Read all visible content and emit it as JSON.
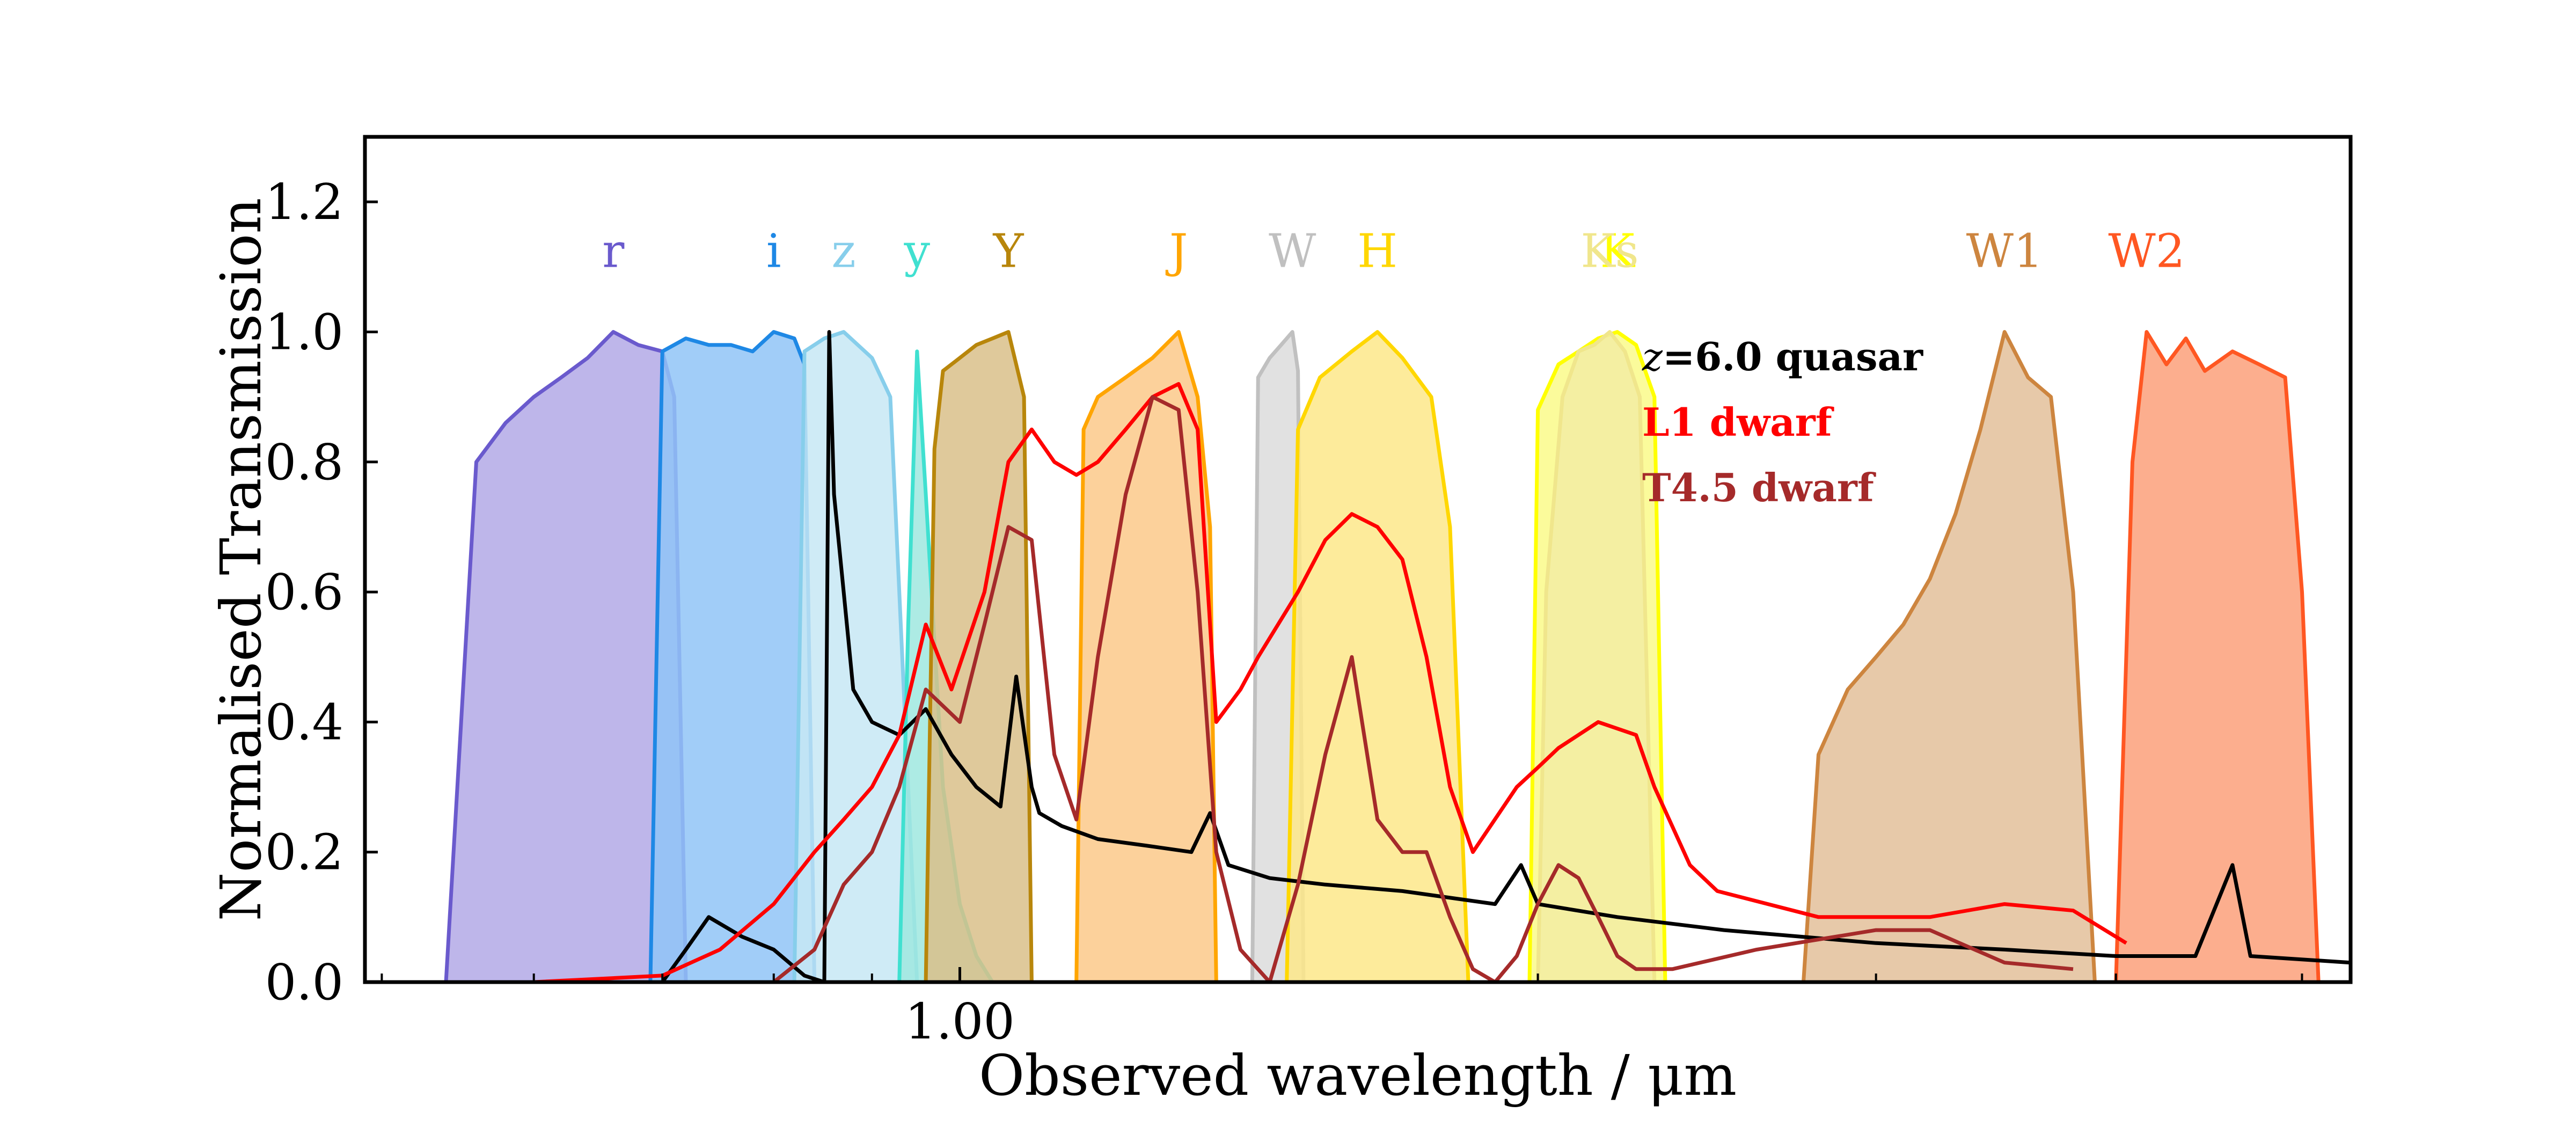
{
  "chart_data": {
    "type": "area",
    "xlabel": "Observed wavelength / μm",
    "ylabel": "Normalised Transmission",
    "x_scale": "log",
    "xlim": [
      0.49,
      5.3
    ],
    "ylim": [
      0.0,
      1.3
    ],
    "x_tick_labels": [
      "1.00"
    ],
    "y_tick_labels": [
      "0.0",
      "0.2",
      "0.4",
      "0.6",
      "0.8",
      "1.0",
      "1.2"
    ],
    "grid": false,
    "legend_position": "upper-middle",
    "filters": [
      {
        "label": "r",
        "color": "#6a5acd",
        "fill": "#b3a9e6",
        "x": [
          0.54,
          0.56,
          0.58,
          0.6,
          0.62,
          0.64,
          0.66,
          0.68,
          0.7,
          0.71,
          0.72
        ],
        "y": [
          0.0,
          0.8,
          0.86,
          0.9,
          0.93,
          0.96,
          1.0,
          0.98,
          0.97,
          0.9,
          0.0
        ]
      },
      {
        "label": "i",
        "color": "#1e88e5",
        "fill": "#90c4f7",
        "x": [
          0.69,
          0.7,
          0.72,
          0.74,
          0.76,
          0.78,
          0.8,
          0.82,
          0.83,
          0.84
        ],
        "y": [
          0.0,
          0.97,
          0.99,
          0.98,
          0.98,
          0.97,
          1.0,
          0.99,
          0.95,
          0.0
        ]
      },
      {
        "label": "z",
        "color": "#87ceeb",
        "fill": "#c7e7f5",
        "x": [
          0.82,
          0.83,
          0.85,
          0.87,
          0.9,
          0.92,
          0.93,
          0.95
        ],
        "y": [
          0.0,
          0.97,
          0.99,
          1.0,
          0.96,
          0.9,
          0.6,
          0.0
        ]
      },
      {
        "label": "y",
        "color": "#40e0d0",
        "fill": "#9fe8df",
        "x": [
          0.93,
          0.94,
          0.95,
          0.96,
          0.98,
          1.0,
          1.02,
          1.04
        ],
        "y": [
          0.0,
          0.55,
          0.97,
          0.75,
          0.3,
          0.12,
          0.04,
          0.0
        ]
      },
      {
        "label": "Y",
        "color": "#b8860b",
        "fill": "#d9c08a",
        "x": [
          0.96,
          0.97,
          0.98,
          1.0,
          1.02,
          1.04,
          1.06,
          1.08,
          1.09
        ],
        "y": [
          0.0,
          0.82,
          0.94,
          0.96,
          0.98,
          0.99,
          1.0,
          0.9,
          0.0
        ]
      },
      {
        "label": "J",
        "color": "#ffa500",
        "fill": "#fcc98a",
        "x": [
          1.15,
          1.16,
          1.18,
          1.22,
          1.26,
          1.3,
          1.33,
          1.35,
          1.36
        ],
        "y": [
          0.0,
          0.85,
          0.9,
          0.93,
          0.96,
          1.0,
          0.9,
          0.7,
          0.0
        ]
      },
      {
        "label": "W",
        "color": "#c0c0c0",
        "fill": "#dcdcdc",
        "x": [
          1.42,
          1.43,
          1.45,
          1.47,
          1.49,
          1.5,
          1.51
        ],
        "y": [
          0.0,
          0.93,
          0.96,
          0.98,
          1.0,
          0.94,
          0.0
        ]
      },
      {
        "label": "H",
        "color": "#ffd700",
        "fill": "#fde88a",
        "x": [
          1.48,
          1.5,
          1.54,
          1.6,
          1.65,
          1.7,
          1.76,
          1.8,
          1.84
        ],
        "y": [
          0.0,
          0.85,
          0.93,
          0.97,
          1.0,
          0.96,
          0.9,
          0.7,
          0.0
        ]
      },
      {
        "label": "K",
        "color": "#ffff00",
        "fill": "#fafa8a",
        "x": [
          1.98,
          2.0,
          2.05,
          2.1,
          2.15,
          2.2,
          2.25,
          2.3,
          2.33
        ],
        "y": [
          0.0,
          0.88,
          0.95,
          0.97,
          0.99,
          1.0,
          0.98,
          0.9,
          0.0
        ]
      },
      {
        "label": "Ks",
        "color": "#f0e68c",
        "fill": "#f2eca3",
        "x": [
          2.0,
          2.02,
          2.06,
          2.1,
          2.14,
          2.18,
          2.22,
          2.26,
          2.3
        ],
        "y": [
          0.0,
          0.6,
          0.9,
          0.97,
          0.98,
          1.0,
          0.97,
          0.9,
          0.0
        ]
      },
      {
        "label": "W1",
        "color": "#cd853f",
        "fill": "#e3c09a",
        "x": [
          2.75,
          2.8,
          2.9,
          3.0,
          3.1,
          3.2,
          3.3,
          3.4,
          3.5,
          3.6,
          3.7,
          3.8,
          3.9
        ],
        "y": [
          0.0,
          0.35,
          0.45,
          0.5,
          0.55,
          0.62,
          0.72,
          0.85,
          1.0,
          0.93,
          0.9,
          0.6,
          0.0
        ]
      },
      {
        "label": "W2",
        "color": "#ff5722",
        "fill": "#fba07a",
        "x": [
          4.0,
          4.08,
          4.15,
          4.25,
          4.35,
          4.45,
          4.6,
          4.75,
          4.9,
          5.0,
          5.1
        ],
        "y": [
          0.0,
          0.8,
          1.0,
          0.95,
          0.99,
          0.94,
          0.97,
          0.95,
          0.93,
          0.6,
          0.0
        ]
      }
    ],
    "series": [
      {
        "name": "z=6.0 quasar",
        "color": "#000000",
        "x": [
          0.7,
          0.72,
          0.74,
          0.77,
          0.8,
          0.83,
          0.85,
          0.855,
          0.86,
          0.87,
          0.88,
          0.9,
          0.93,
          0.96,
          0.99,
          1.02,
          1.05,
          1.07,
          1.09,
          1.1,
          1.13,
          1.18,
          1.25,
          1.32,
          1.35,
          1.38,
          1.45,
          1.55,
          1.7,
          1.9,
          1.96,
          2.0,
          2.2,
          2.5,
          3.0,
          3.5,
          4.0,
          4.4,
          4.6,
          4.7,
          5.3
        ],
        "y": [
          0.0,
          0.05,
          0.1,
          0.07,
          0.05,
          0.01,
          0.0,
          1.0,
          0.75,
          0.6,
          0.45,
          0.4,
          0.38,
          0.42,
          0.35,
          0.3,
          0.27,
          0.47,
          0.3,
          0.26,
          0.24,
          0.22,
          0.21,
          0.2,
          0.26,
          0.18,
          0.16,
          0.15,
          0.14,
          0.12,
          0.18,
          0.12,
          0.1,
          0.08,
          0.06,
          0.05,
          0.04,
          0.04,
          0.18,
          0.04,
          0.03
        ]
      },
      {
        "name": "L1 dwarf",
        "color": "#ff0000",
        "x": [
          0.6,
          0.7,
          0.75,
          0.8,
          0.84,
          0.87,
          0.9,
          0.93,
          0.96,
          0.99,
          1.03,
          1.06,
          1.09,
          1.12,
          1.15,
          1.18,
          1.22,
          1.26,
          1.3,
          1.33,
          1.36,
          1.4,
          1.43,
          1.5,
          1.55,
          1.6,
          1.65,
          1.7,
          1.75,
          1.8,
          1.85,
          1.95,
          2.0,
          2.05,
          2.15,
          2.25,
          2.3,
          2.4,
          2.48,
          2.8,
          3.2,
          3.5,
          3.8,
          4.05
        ],
        "y": [
          0.0,
          0.01,
          0.05,
          0.12,
          0.2,
          0.25,
          0.3,
          0.38,
          0.55,
          0.45,
          0.6,
          0.8,
          0.85,
          0.8,
          0.78,
          0.8,
          0.85,
          0.9,
          0.92,
          0.85,
          0.4,
          0.45,
          0.5,
          0.6,
          0.68,
          0.72,
          0.7,
          0.65,
          0.5,
          0.3,
          0.2,
          0.3,
          0.33,
          0.36,
          0.4,
          0.38,
          0.3,
          0.18,
          0.14,
          0.1,
          0.1,
          0.12,
          0.11,
          0.06
        ]
      },
      {
        "name": "T4.5 dwarf",
        "color": "#a52a2a",
        "x": [
          0.8,
          0.84,
          0.87,
          0.9,
          0.93,
          0.96,
          1.0,
          1.03,
          1.06,
          1.09,
          1.12,
          1.15,
          1.18,
          1.22,
          1.26,
          1.3,
          1.33,
          1.36,
          1.4,
          1.45,
          1.5,
          1.55,
          1.6,
          1.65,
          1.7,
          1.75,
          1.8,
          1.85,
          1.9,
          1.95,
          2.0,
          2.05,
          2.1,
          2.15,
          2.2,
          2.25,
          2.35,
          2.6,
          3.0,
          3.2,
          3.5,
          3.8
        ],
        "y": [
          0.0,
          0.05,
          0.15,
          0.2,
          0.3,
          0.45,
          0.4,
          0.55,
          0.7,
          0.68,
          0.35,
          0.25,
          0.5,
          0.75,
          0.9,
          0.88,
          0.6,
          0.2,
          0.05,
          0.0,
          0.15,
          0.35,
          0.5,
          0.25,
          0.2,
          0.2,
          0.1,
          0.02,
          0.0,
          0.04,
          0.12,
          0.18,
          0.16,
          0.1,
          0.04,
          0.02,
          0.02,
          0.05,
          0.08,
          0.08,
          0.03,
          0.02
        ]
      }
    ],
    "legend": [
      {
        "prefix": "z",
        "text": "=6.0 quasar",
        "color": "#000000"
      },
      {
        "prefix": "",
        "text": "L1 dwarf",
        "color": "#ff0000"
      },
      {
        "prefix": "",
        "text": "T4.5 dwarf",
        "color": "#a52a2a"
      }
    ]
  }
}
